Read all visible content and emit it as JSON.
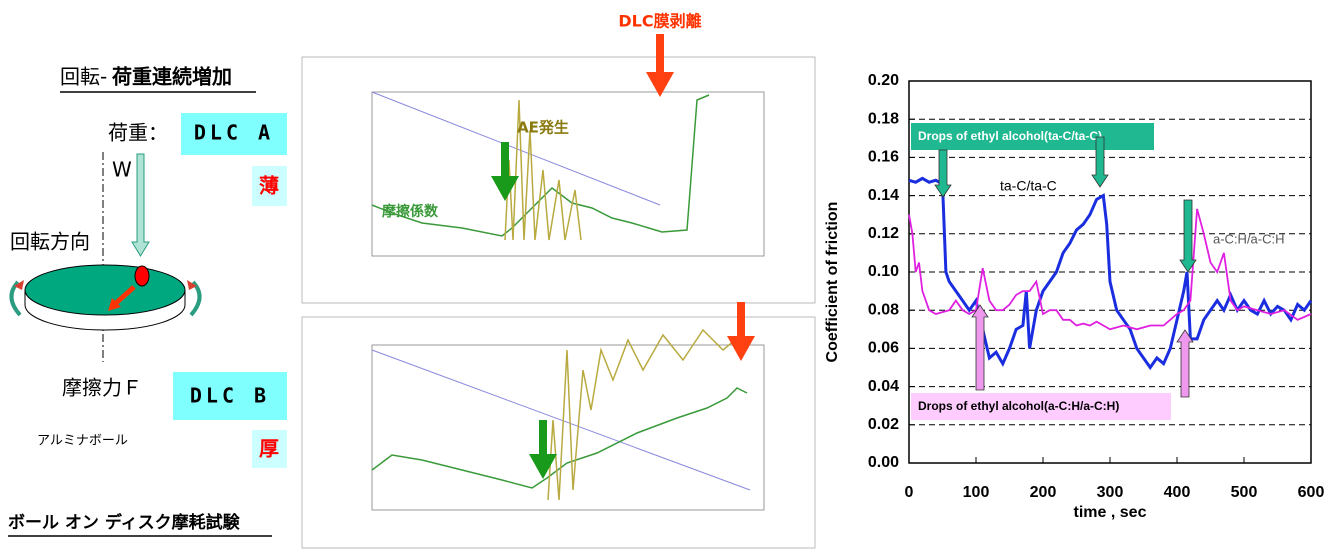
{
  "diagram": {
    "title_part1": "回転-",
    "title_part2": "荷重連続増加",
    "load_label": "荷重：",
    "w_label": "W",
    "dlc_a": "DLC A",
    "thin": "薄",
    "rotation_label": "回転方向",
    "friction_label": "摩擦力Ｆ",
    "dlc_b": "DLC B",
    "thick": "厚",
    "ball_label": "アルミナボール",
    "test_title": "ボール オン ディスク摩耗試験"
  },
  "screenshots": {
    "peel_label": "DLC膜剥離",
    "ae_label": "AE発生",
    "cof_label": "摩擦係数"
  },
  "chart_data": {
    "type": "line",
    "xlabel": "time , sec",
    "ylabel": "Coefficient of friction",
    "xlim": [
      0,
      600
    ],
    "xticks": [
      0,
      100,
      200,
      300,
      400,
      500,
      600
    ],
    "ylim": [
      0,
      0.2
    ],
    "yticks": [
      {
        "value": 0,
        "label": "0.00"
      },
      {
        "value": 0.02,
        "label": "0.02"
      },
      {
        "value": 0.04,
        "label": "0.04"
      },
      {
        "value": 0.06,
        "label": "0.06"
      },
      {
        "value": 0.08,
        "label": "0.08"
      },
      {
        "value": 0.1,
        "label": "0.10"
      },
      {
        "value": 0.12,
        "label": "0.12"
      },
      {
        "value": 0.14,
        "label": "0.14"
      },
      {
        "value": 0.16,
        "label": "0.16"
      },
      {
        "value": 0.18,
        "label": "0.18"
      },
      {
        "value": 0.2,
        "label": "0.20"
      }
    ],
    "grid": true,
    "annotations": [
      "Drops of ethyl alcohol(ta-C/ta-C)",
      "Drops of ethyl alcohol(a-C:H/a-C:H)"
    ],
    "series": [
      {
        "name": "ta-C/ta-C",
        "color": "#1a2ee0",
        "x": [
          0,
          10,
          20,
          30,
          40,
          50,
          55,
          60,
          70,
          80,
          90,
          100,
          110,
          120,
          130,
          140,
          150,
          160,
          170,
          175,
          180,
          190,
          200,
          210,
          220,
          230,
          240,
          250,
          260,
          270,
          280,
          290,
          295,
          300,
          310,
          320,
          330,
          340,
          350,
          360,
          370,
          380,
          390,
          400,
          410,
          415,
          420,
          430,
          440,
          450,
          460,
          470,
          480,
          490,
          500,
          510,
          520,
          530,
          540,
          550,
          560,
          570,
          580,
          590,
          600
        ],
        "values": [
          0.148,
          0.147,
          0.149,
          0.147,
          0.148,
          0.146,
          0.1,
          0.095,
          0.09,
          0.085,
          0.08,
          0.085,
          0.07,
          0.055,
          0.058,
          0.052,
          0.06,
          0.07,
          0.072,
          0.09,
          0.06,
          0.08,
          0.09,
          0.095,
          0.1,
          0.11,
          0.115,
          0.122,
          0.125,
          0.13,
          0.138,
          0.14,
          0.125,
          0.095,
          0.08,
          0.075,
          0.07,
          0.06,
          0.055,
          0.05,
          0.055,
          0.052,
          0.06,
          0.075,
          0.09,
          0.1,
          0.065,
          0.065,
          0.075,
          0.08,
          0.085,
          0.08,
          0.088,
          0.08,
          0.085,
          0.08,
          0.078,
          0.085,
          0.078,
          0.082,
          0.08,
          0.075,
          0.083,
          0.08,
          0.085
        ]
      },
      {
        "name": "a-C:H/a-C:H",
        "color": "#e020e0",
        "x": [
          0,
          5,
          10,
          15,
          20,
          25,
          30,
          40,
          50,
          60,
          70,
          80,
          90,
          100,
          110,
          120,
          130,
          140,
          150,
          160,
          170,
          180,
          190,
          200,
          210,
          220,
          230,
          240,
          250,
          260,
          270,
          280,
          290,
          300,
          320,
          340,
          360,
          380,
          400,
          410,
          420,
          430,
          440,
          450,
          460,
          470,
          480,
          490,
          500,
          520,
          540,
          560,
          580,
          600
        ],
        "values": [
          0.13,
          0.12,
          0.1,
          0.105,
          0.09,
          0.085,
          0.08,
          0.078,
          0.079,
          0.08,
          0.085,
          0.08,
          0.078,
          0.08,
          0.102,
          0.085,
          0.08,
          0.08,
          0.083,
          0.088,
          0.09,
          0.09,
          0.095,
          0.078,
          0.08,
          0.08,
          0.075,
          0.075,
          0.072,
          0.073,
          0.072,
          0.074,
          0.072,
          0.07,
          0.072,
          0.07,
          0.072,
          0.072,
          0.078,
          0.08,
          0.085,
          0.133,
          0.12,
          0.105,
          0.1,
          0.11,
          0.085,
          0.08,
          0.082,
          0.08,
          0.078,
          0.08,
          0.075,
          0.078
        ]
      }
    ]
  }
}
